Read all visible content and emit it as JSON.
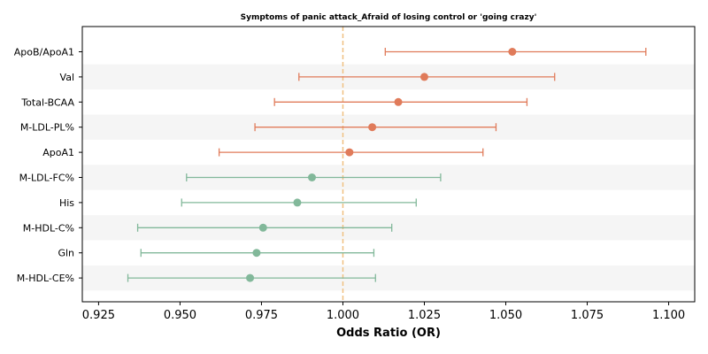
{
  "chart_data": {
    "type": "forest",
    "title": "Symptoms of panic attack_Afraid of losing control or 'going crazy'",
    "xlabel": "Odds Ratio (OR)",
    "ylabel": "",
    "xlim": [
      0.92,
      1.108
    ],
    "xticks": [
      "0.925",
      "0.950",
      "0.975",
      "1.000",
      "1.025",
      "1.050",
      "1.075",
      "1.100"
    ],
    "reference_line": 1.0,
    "grid": false,
    "colors": {
      "risk": "#e07b5a",
      "protective": "#82b89a",
      "reference": "#f0c080",
      "band": "#f5f5f5"
    },
    "rows": [
      {
        "label": "ApoB/ApoA1",
        "or": 1.052,
        "lo": 1.013,
        "hi": 1.093,
        "group": "risk"
      },
      {
        "label": "Val",
        "or": 1.025,
        "lo": 0.9865,
        "hi": 1.065,
        "group": "risk"
      },
      {
        "label": "Total-BCAA",
        "or": 1.017,
        "lo": 0.979,
        "hi": 1.0565,
        "group": "risk"
      },
      {
        "label": "M-LDL-PL%",
        "or": 1.009,
        "lo": 0.973,
        "hi": 1.047,
        "group": "risk"
      },
      {
        "label": "ApoA1",
        "or": 1.002,
        "lo": 0.962,
        "hi": 1.043,
        "group": "risk"
      },
      {
        "label": "M-LDL-FC%",
        "or": 0.9905,
        "lo": 0.952,
        "hi": 1.03,
        "group": "protective"
      },
      {
        "label": "His",
        "or": 0.986,
        "lo": 0.9505,
        "hi": 1.0225,
        "group": "protective"
      },
      {
        "label": "M-HDL-C%",
        "or": 0.9755,
        "lo": 0.937,
        "hi": 1.015,
        "group": "protective"
      },
      {
        "label": "Gln",
        "or": 0.9735,
        "lo": 0.938,
        "hi": 1.0095,
        "group": "protective"
      },
      {
        "label": "M-HDL-CE%",
        "or": 0.9715,
        "lo": 0.934,
        "hi": 1.01,
        "group": "protective"
      }
    ]
  }
}
